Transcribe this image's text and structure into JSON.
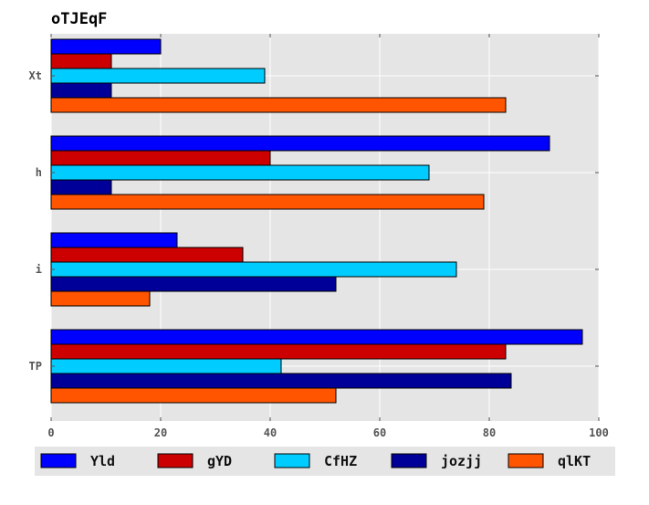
{
  "chart_data": {
    "type": "bar",
    "orientation": "horizontal",
    "title": "oTJEqF",
    "xlabel": "",
    "ylabel": "",
    "categories": [
      "Xt",
      "h",
      "i",
      "TP"
    ],
    "xlim": [
      0,
      100
    ],
    "xticks": [
      0,
      20,
      40,
      60,
      80,
      100
    ],
    "grid": true,
    "legend_position": "bottom",
    "series": [
      {
        "name": "Yld",
        "color": "#0000ff",
        "values": [
          20,
          91,
          23,
          97
        ]
      },
      {
        "name": "gYD",
        "color": "#cc0000",
        "values": [
          11,
          40,
          35,
          83
        ]
      },
      {
        "name": "CfHZ",
        "color": "#00ccff",
        "values": [
          39,
          69,
          74,
          42
        ]
      },
      {
        "name": "jozjj",
        "color": "#000099",
        "values": [
          11,
          11,
          52,
          84
        ]
      },
      {
        "name": "qlKT",
        "color": "#ff5500",
        "values": [
          83,
          79,
          18,
          52
        ]
      }
    ]
  }
}
